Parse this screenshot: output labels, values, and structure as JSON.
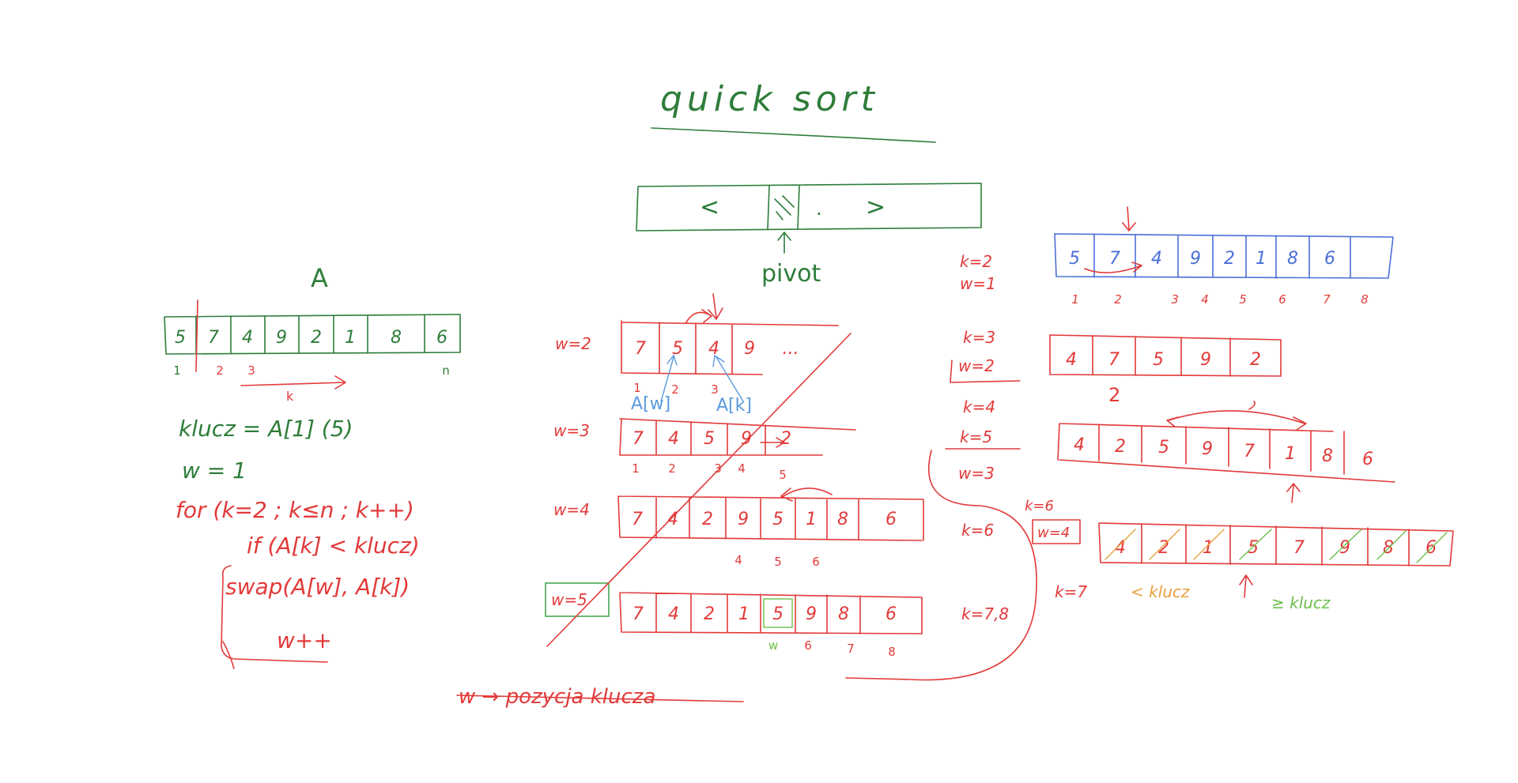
{
  "colors": {
    "green": "#2e7d3a",
    "red": "#e23a3a",
    "blue": "#4a6fd8",
    "light_blue": "#5b9be0",
    "orange": "#e6a23c",
    "light_green": "#6cc04a"
  },
  "title": "quick sort",
  "schematic": {
    "left": "<",
    "right": ">",
    "dot": ".",
    "pivot_label": "pivot"
  },
  "array_a": {
    "label": "A",
    "values": [
      "5",
      "7",
      "4",
      "9",
      "2",
      "1",
      "8",
      "6"
    ],
    "indices": [
      "1",
      "2",
      "3",
      "n"
    ],
    "k_label": "k"
  },
  "code": {
    "line1": "klucz = A[1]   (5)",
    "line2": "w = 1",
    "line3": "for (k=2 ; k≤n ; k++)",
    "line4": "if (A[k] < klucz)",
    "line5": "swap(A[w], A[k])",
    "line6": "w++"
  },
  "middle": {
    "row1": {
      "label": "w=2",
      "values": [
        "7",
        "5",
        "4",
        "9",
        "..."
      ],
      "indices": [
        "1",
        "2",
        "3"
      ],
      "aw": "A[w]",
      "ak": "A[k]"
    },
    "row2": {
      "label": "w=3",
      "values": [
        "7",
        "4",
        "5",
        "9",
        "2"
      ],
      "indices": [
        "1",
        "2",
        "3",
        "4",
        "5"
      ]
    },
    "row3": {
      "label": "w=4",
      "values": [
        "7",
        "4",
        "2",
        "9",
        "5",
        "1",
        "8",
        "6"
      ],
      "indices": [
        "4",
        "5",
        "6"
      ]
    },
    "row4": {
      "label": "w=5",
      "values": [
        "7",
        "4",
        "2",
        "1",
        "5",
        "9",
        "8",
        "6"
      ],
      "indices": [
        "w",
        "6",
        "7",
        "8"
      ]
    },
    "bottom_note": "w → pozycja klucza"
  },
  "right": {
    "blue_array": {
      "values": [
        "5",
        "7",
        "4",
        "9",
        "2",
        "1",
        "8",
        "6"
      ],
      "indices": [
        "1",
        "2",
        "3",
        "4",
        "5",
        "6",
        "7",
        "8"
      ]
    },
    "labels": [
      "k=2",
      "w=1",
      "k=3",
      "w=2",
      "k=4",
      "k=5",
      "w=3",
      "k=6",
      "k=6",
      "w=4",
      "k=7",
      "k=7,8"
    ],
    "row_a": {
      "values": [
        "4",
        "7",
        "5",
        "9",
        "2"
      ],
      "under": "2"
    },
    "row_b": {
      "values": [
        "4",
        "2",
        "5",
        "9",
        "7",
        "1",
        "8",
        "6"
      ]
    },
    "row_c": {
      "values": [
        "4",
        "2",
        "1",
        "5",
        "7",
        "9",
        "8",
        "6"
      ]
    },
    "less_label": "< klucz",
    "geq_label": "≥ klucz"
  }
}
